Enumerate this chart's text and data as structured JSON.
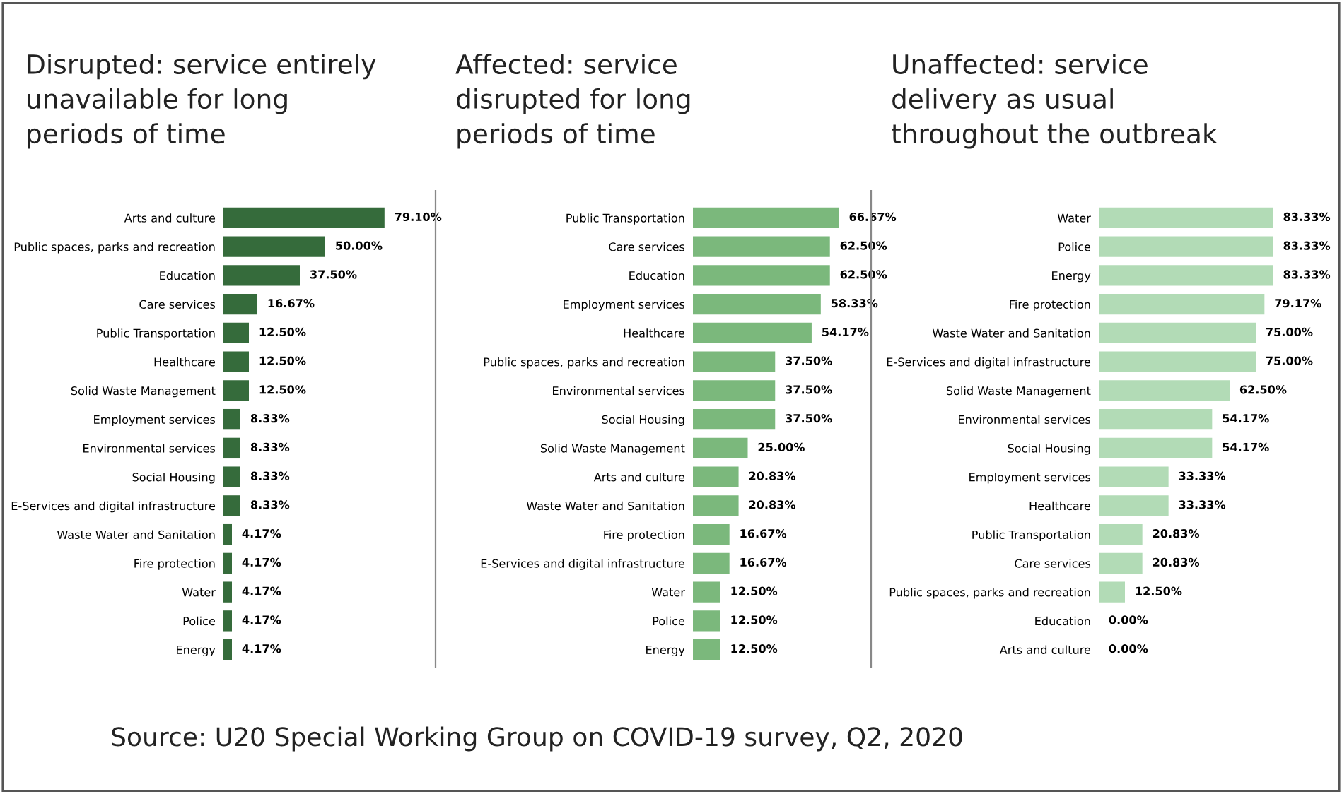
{
  "chart_data": [
    {
      "type": "bar",
      "orientation": "horizontal",
      "title": "Disrupted: service entirely\nunavailable for long\nperiods of time",
      "tick_labels": "y",
      "color": "#356b3b",
      "annotations": [
        "Source: U20 Special Working Group on COVID-19 survey, Q2, 2020"
      ],
      "categories": [
        "Arts and culture",
        "Public spaces, parks and recreation",
        "Education",
        "Care services",
        "Public Transportation",
        "Healthcare",
        "Solid Waste Management",
        "Employment services",
        "Environmental services",
        "Social Housing",
        "E-Services and digital infrastructure",
        "Waste Water and Sanitation",
        "Fire protection",
        "Water",
        "Police",
        "Energy"
      ],
      "values": [
        79.1,
        50.0,
        37.5,
        16.67,
        12.5,
        12.5,
        12.5,
        8.33,
        8.33,
        8.33,
        8.33,
        4.17,
        4.17,
        4.17,
        4.17,
        4.17
      ],
      "value_labels": [
        "79.10%",
        "50.00%",
        "37.50%",
        "16.67%",
        "12.50%",
        "12.50%",
        "12.50%",
        "8.33%",
        "8.33%",
        "8.33%",
        "8.33%",
        "4.17%",
        "4.17%",
        "4.17%",
        "4.17%",
        "4.17%"
      ]
    },
    {
      "type": "bar",
      "orientation": "horizontal",
      "title": "Affected: service\ndisrupted for long\nperiods of time",
      "tick_labels": "y",
      "color": "#7bb87c",
      "categories": [
        "Public Transportation",
        "Care services",
        "Education",
        "Employment services",
        "Healthcare",
        "Public spaces, parks and recreation",
        "Environmental services",
        "Social Housing",
        "Solid Waste Management",
        "Arts and culture",
        "Waste Water and Sanitation",
        "Fire protection",
        "E-Services and digital infrastructure",
        "Water",
        "Police",
        "Energy"
      ],
      "values": [
        66.67,
        62.5,
        62.5,
        58.33,
        54.17,
        37.5,
        37.5,
        37.5,
        25.0,
        20.83,
        20.83,
        16.67,
        16.67,
        12.5,
        12.5,
        12.5
      ],
      "value_labels": [
        "66.67%",
        "62.50%",
        "62.50%",
        "58.33%",
        "54.17%",
        "37.50%",
        "37.50%",
        "37.50%",
        "25.00%",
        "20.83%",
        "20.83%",
        "16.67%",
        "16.67%",
        "12.50%",
        "12.50%",
        "12.50%"
      ]
    },
    {
      "type": "bar",
      "orientation": "horizontal",
      "title": "Unaffected: service\ndelivery as usual\nthroughout the outbreak",
      "tick_labels": "y",
      "color": "#b2dbb6",
      "categories": [
        "Water",
        "Police",
        "Energy",
        "Fire protection",
        "Waste Water and Sanitation",
        "E-Services and digital infrastructure",
        "Solid Waste Management",
        "Environmental services",
        "Social Housing",
        "Employment services",
        "Healthcare",
        "Public Transportation",
        "Care services",
        "Public spaces, parks and recreation",
        "Education",
        "Arts and culture"
      ],
      "values": [
        83.33,
        83.33,
        83.33,
        79.17,
        75.0,
        75.0,
        62.5,
        54.17,
        54.17,
        33.33,
        33.33,
        20.83,
        20.83,
        12.5,
        0.0,
        0.0
      ],
      "value_labels": [
        "83.33%",
        "83.33%",
        "83.33%",
        "79.17%",
        "75.00%",
        "75.00%",
        "62.50%",
        "54.17%",
        "54.17%",
        "33.33%",
        "33.33%",
        "20.83%",
        "20.83%",
        "12.50%",
        "0.00%",
        "0.00%"
      ]
    }
  ]
}
